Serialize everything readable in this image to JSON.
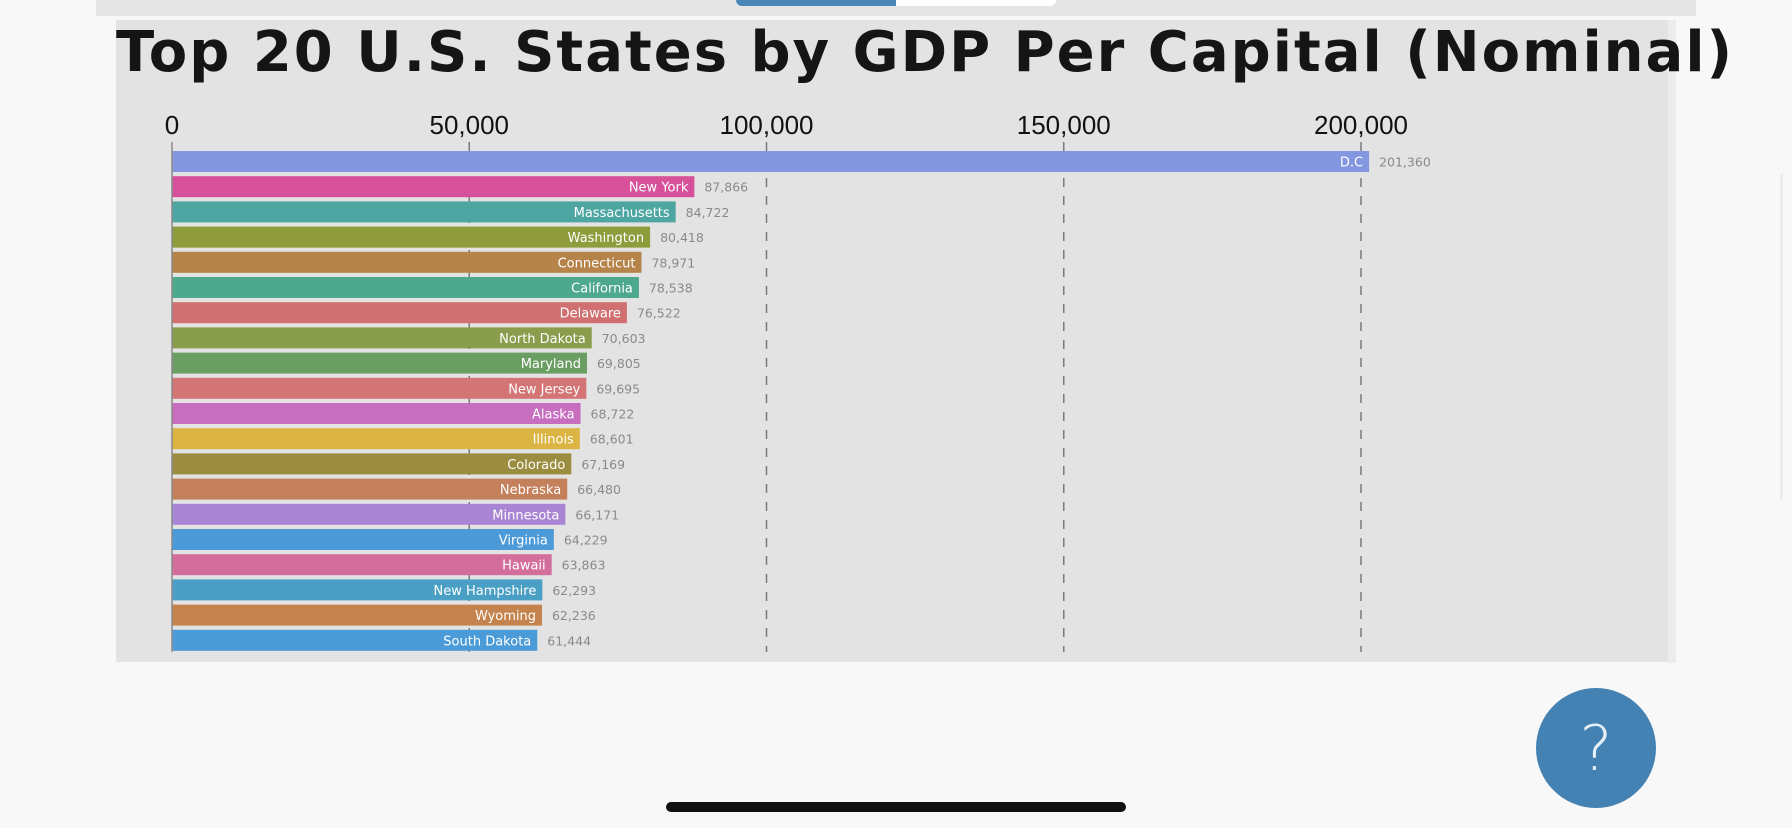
{
  "segmented_control": {
    "active_color": "#4a86b8"
  },
  "help_button": {
    "label": "?",
    "color": "#4382b3"
  },
  "chart_data": {
    "type": "bar",
    "orientation": "horizontal",
    "title": "Top 20 U.S. States by GDP Per Capital (Nominal)",
    "xlabel": "",
    "ylabel": "",
    "xlim": [
      0,
      250000
    ],
    "x_ticks": [
      0,
      50000,
      100000,
      150000,
      200000
    ],
    "x_tick_labels": [
      "0",
      "50,000",
      "100,000",
      "150,000",
      "200,000"
    ],
    "grid": "vertical dashed",
    "categories": [
      "D.C",
      "New York",
      "Massachusetts",
      "Washington",
      "Connecticut",
      "California",
      "Delaware",
      "North Dakota",
      "Maryland",
      "New Jersey",
      "Alaska",
      "Illinois",
      "Colorado",
      "Nebraska",
      "Minnesota",
      "Virginia",
      "Hawaii",
      "New Hampshire",
      "Wyoming",
      "South Dakota"
    ],
    "values": [
      201360,
      87866,
      84722,
      80418,
      78971,
      78538,
      76522,
      70603,
      69805,
      69695,
      68722,
      68601,
      67169,
      66480,
      66171,
      64229,
      63863,
      62293,
      62236,
      61444
    ],
    "value_labels": [
      "201,360",
      "87,866",
      "84,722",
      "80,418",
      "78,971",
      "78,538",
      "76,522",
      "70,603",
      "69,805",
      "69,695",
      "68,722",
      "68,601",
      "67,169",
      "66,480",
      "66,171",
      "64,229",
      "63,863",
      "62,293",
      "62,236",
      "61,444"
    ],
    "colors": [
      "#8396e0",
      "#d6519a",
      "#4ea6a2",
      "#8e9c3c",
      "#b6844a",
      "#4ea88e",
      "#d17070",
      "#8a9d4c",
      "#6a9e63",
      "#d37575",
      "#c76ec0",
      "#dbb443",
      "#9a8d3f",
      "#c4805a",
      "#a985d3",
      "#4c9ad8",
      "#d26d9c",
      "#4a9fc4",
      "#c4834d",
      "#4b9bd8"
    ]
  }
}
